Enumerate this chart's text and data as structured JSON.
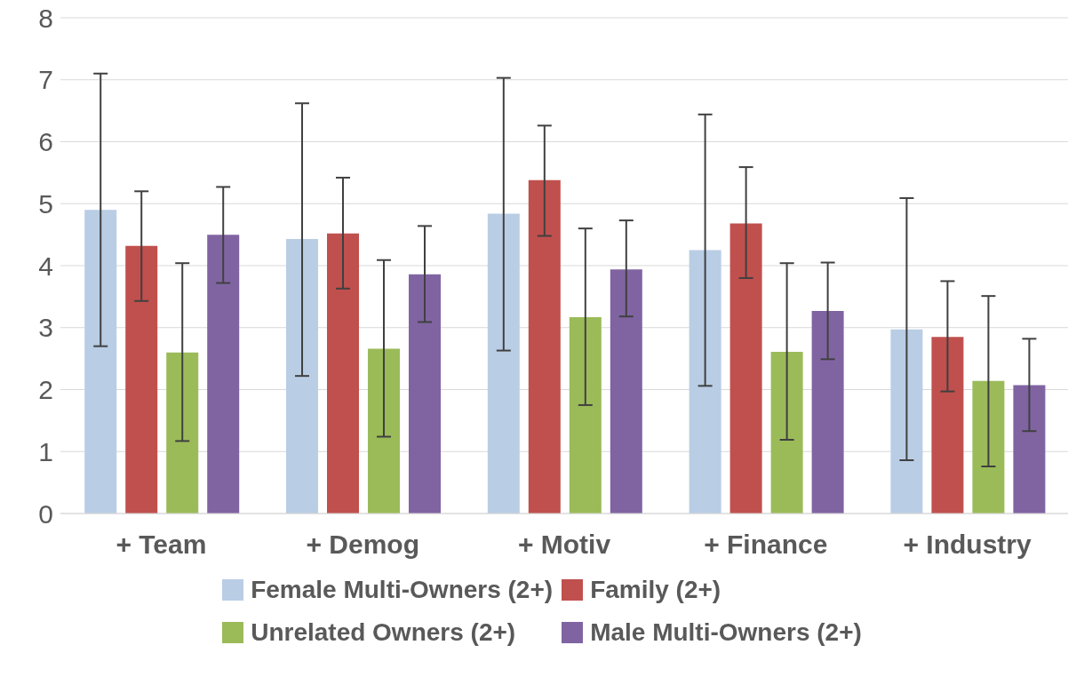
{
  "chart_data": {
    "type": "bar",
    "categories": [
      "+ Team",
      "+ Demog",
      "+ Motiv",
      "+ Finance",
      "+ Industry"
    ],
    "series": [
      {
        "name": "Female Multi-Owners (2+)",
        "color": "#b9cde5",
        "values": [
          4.9,
          4.43,
          4.84,
          4.25,
          2.97
        ],
        "errors": [
          [
            2.7,
            7.1
          ],
          [
            2.22,
            6.62
          ],
          [
            2.63,
            7.03
          ],
          [
            2.06,
            6.44
          ],
          [
            0.86,
            5.09
          ]
        ]
      },
      {
        "name": "Family (2+)",
        "color": "#c0504d",
        "values": [
          4.32,
          4.52,
          5.38,
          4.68,
          2.85
        ],
        "errors": [
          [
            3.43,
            5.2
          ],
          [
            3.63,
            5.42
          ],
          [
            4.48,
            6.26
          ],
          [
            3.8,
            5.59
          ],
          [
            1.97,
            3.75
          ]
        ]
      },
      {
        "name": "Unrelated Owners (2+)",
        "color": "#9bbb59",
        "values": [
          2.6,
          2.66,
          3.17,
          2.61,
          2.14
        ],
        "errors": [
          [
            1.17,
            4.04
          ],
          [
            1.24,
            4.09
          ],
          [
            1.75,
            4.6
          ],
          [
            1.19,
            4.04
          ],
          [
            0.76,
            3.51
          ]
        ]
      },
      {
        "name": "Male Multi-Owners (2+)",
        "color": "#8064a2",
        "values": [
          4.5,
          3.86,
          3.94,
          3.27,
          2.07
        ],
        "errors": [
          [
            3.72,
            5.27
          ],
          [
            3.09,
            4.64
          ],
          [
            3.18,
            4.73
          ],
          [
            2.49,
            4.05
          ],
          [
            1.33,
            2.82
          ]
        ]
      }
    ],
    "ylim": [
      0,
      8
    ],
    "yticks": [
      0,
      1,
      2,
      3,
      4,
      5,
      6,
      7,
      8
    ],
    "grid": "y",
    "legend": "bottom"
  }
}
